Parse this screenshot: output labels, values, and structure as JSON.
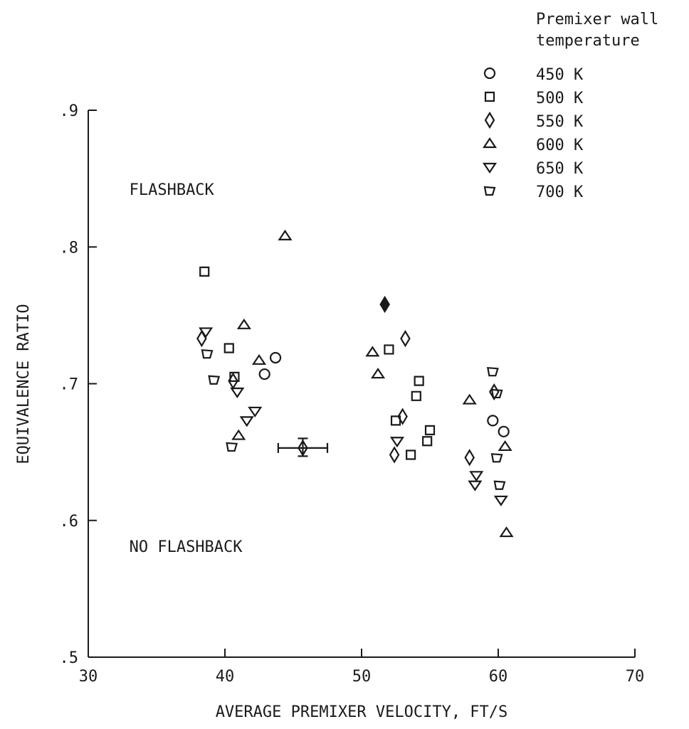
{
  "chart_data": {
    "type": "scatter",
    "title": "",
    "xlabel": "AVERAGE PREMIXER VELOCITY, FT/S",
    "ylabel": "EQUIVALENCE RATIO",
    "xlim": [
      30,
      70
    ],
    "ylim": [
      0.5,
      0.9
    ],
    "x_ticks": [
      {
        "value": 30,
        "label": "30"
      },
      {
        "value": 40,
        "label": "40"
      },
      {
        "value": 50,
        "label": "50"
      },
      {
        "value": 60,
        "label": "60"
      },
      {
        "value": 70,
        "label": "70"
      }
    ],
    "y_ticks": [
      {
        "value": 0.5,
        "label": ".5"
      },
      {
        "value": 0.6,
        "label": ".6"
      },
      {
        "value": 0.7,
        "label": ".7"
      },
      {
        "value": 0.8,
        "label": ".8"
      },
      {
        "value": 0.9,
        "label": ".9"
      }
    ],
    "grid": false,
    "legend": {
      "title_lines": [
        "Premixer wall",
        "temperature"
      ],
      "placement": "top-right"
    },
    "region_labels": [
      {
        "text": "FLASHBACK",
        "x": 33.0,
        "y": 0.838
      },
      {
        "text": "NO FLASHBACK",
        "x": 33.0,
        "y": 0.577
      }
    ],
    "series": [
      {
        "name": "450 K",
        "marker": "circle",
        "points": [
          {
            "x": 42.9,
            "y": 0.707
          },
          {
            "x": 43.7,
            "y": 0.719
          },
          {
            "x": 59.6,
            "y": 0.673
          },
          {
            "x": 60.4,
            "y": 0.665
          }
        ]
      },
      {
        "name": "500 K",
        "marker": "square",
        "points": [
          {
            "x": 38.5,
            "y": 0.782
          },
          {
            "x": 40.3,
            "y": 0.726
          },
          {
            "x": 40.7,
            "y": 0.705
          },
          {
            "x": 52.0,
            "y": 0.725
          },
          {
            "x": 52.5,
            "y": 0.673
          },
          {
            "x": 53.6,
            "y": 0.648
          },
          {
            "x": 54.0,
            "y": 0.691
          },
          {
            "x": 54.2,
            "y": 0.702
          },
          {
            "x": 54.8,
            "y": 0.658
          },
          {
            "x": 55.0,
            "y": 0.666
          }
        ]
      },
      {
        "name": "550 K",
        "marker": "diamond",
        "points": [
          {
            "x": 38.3,
            "y": 0.733
          },
          {
            "x": 40.6,
            "y": 0.702
          },
          {
            "x": 51.7,
            "y": 0.758,
            "filled": true
          },
          {
            "x": 52.4,
            "y": 0.648
          },
          {
            "x": 53.0,
            "y": 0.676
          },
          {
            "x": 53.2,
            "y": 0.733
          },
          {
            "x": 57.9,
            "y": 0.646
          },
          {
            "x": 59.7,
            "y": 0.694
          }
        ]
      },
      {
        "name": "600 K",
        "marker": "triangle-up",
        "points": [
          {
            "x": 44.4,
            "y": 0.808
          },
          {
            "x": 41.4,
            "y": 0.743
          },
          {
            "x": 42.5,
            "y": 0.717
          },
          {
            "x": 41.0,
            "y": 0.662
          },
          {
            "x": 50.8,
            "y": 0.723
          },
          {
            "x": 51.2,
            "y": 0.707
          },
          {
            "x": 57.9,
            "y": 0.688
          },
          {
            "x": 60.5,
            "y": 0.654
          },
          {
            "x": 60.6,
            "y": 0.591
          }
        ]
      },
      {
        "name": "650 K",
        "marker": "triangle-down",
        "points": [
          {
            "x": 38.6,
            "y": 0.738
          },
          {
            "x": 40.9,
            "y": 0.694
          },
          {
            "x": 41.6,
            "y": 0.673
          },
          {
            "x": 42.2,
            "y": 0.68
          },
          {
            "x": 52.6,
            "y": 0.658
          },
          {
            "x": 58.4,
            "y": 0.633
          },
          {
            "x": 58.3,
            "y": 0.626
          },
          {
            "x": 60.2,
            "y": 0.615
          }
        ]
      },
      {
        "name": "700 K",
        "marker": "trapezoid",
        "points": [
          {
            "x": 38.7,
            "y": 0.722
          },
          {
            "x": 39.2,
            "y": 0.703
          },
          {
            "x": 40.5,
            "y": 0.654
          },
          {
            "x": 59.6,
            "y": 0.709
          },
          {
            "x": 59.9,
            "y": 0.693
          },
          {
            "x": 59.9,
            "y": 0.646
          },
          {
            "x": 60.1,
            "y": 0.626
          }
        ]
      }
    ],
    "error_bar": {
      "x": 45.7,
      "y": 0.653,
      "x_range": [
        43.9,
        47.5
      ],
      "y_range": [
        0.647,
        0.66
      ]
    }
  }
}
